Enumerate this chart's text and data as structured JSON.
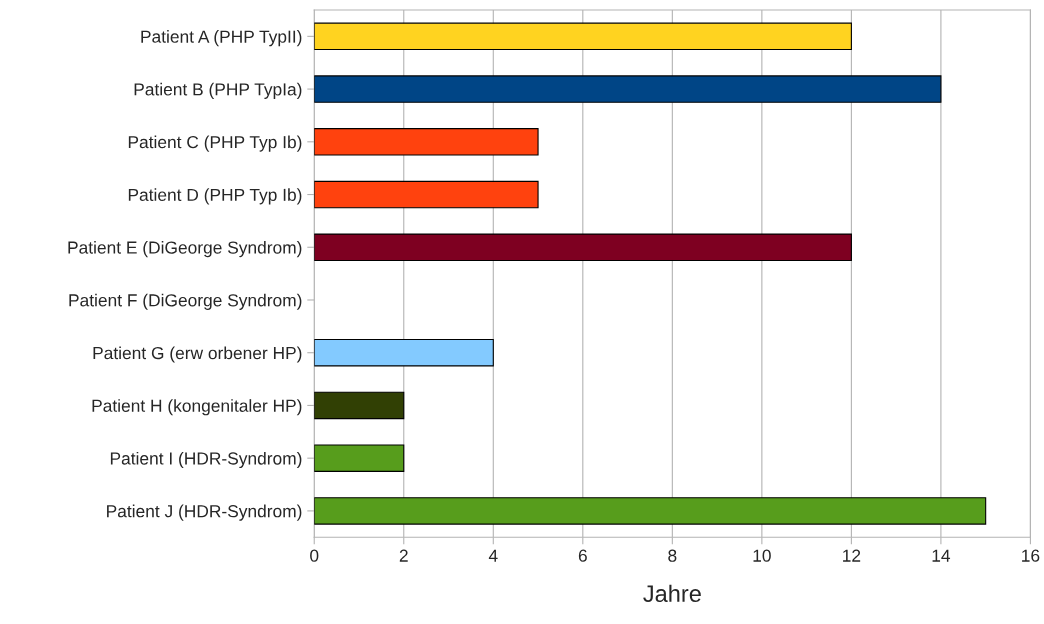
{
  "chart_data": {
    "type": "bar",
    "orientation": "horizontal",
    "xlabel": "Jahre",
    "categories": [
      "Patient A (PHP TypII)",
      "Patient B (PHP TypIa)",
      "Patient C (PHP Typ Ib)",
      "Patient D (PHP Typ Ib)",
      "Patient E (DiGeorge Syndrom)",
      "Patient F (DiGeorge Syndrom)",
      "Patient G (erw orbener HP)",
      "Patient H (kongenitaler HP)",
      "Patient I (HDR-Syndrom)",
      "Patient J (HDR-Syndrom)"
    ],
    "values": [
      12,
      14,
      5,
      5,
      12,
      null,
      4,
      2,
      2,
      15
    ],
    "colors": [
      "#ffd320",
      "#004586",
      "#ff420e",
      "#ff420e",
      "#7e0021",
      "#ff950e",
      "#83caff",
      "#314004",
      "#579d1c",
      "#579d1c"
    ],
    "xlim": [
      0,
      16
    ],
    "xticks": [
      0,
      2,
      4,
      6,
      8,
      10,
      12,
      14,
      16
    ],
    "grid": "x",
    "legend": false
  }
}
